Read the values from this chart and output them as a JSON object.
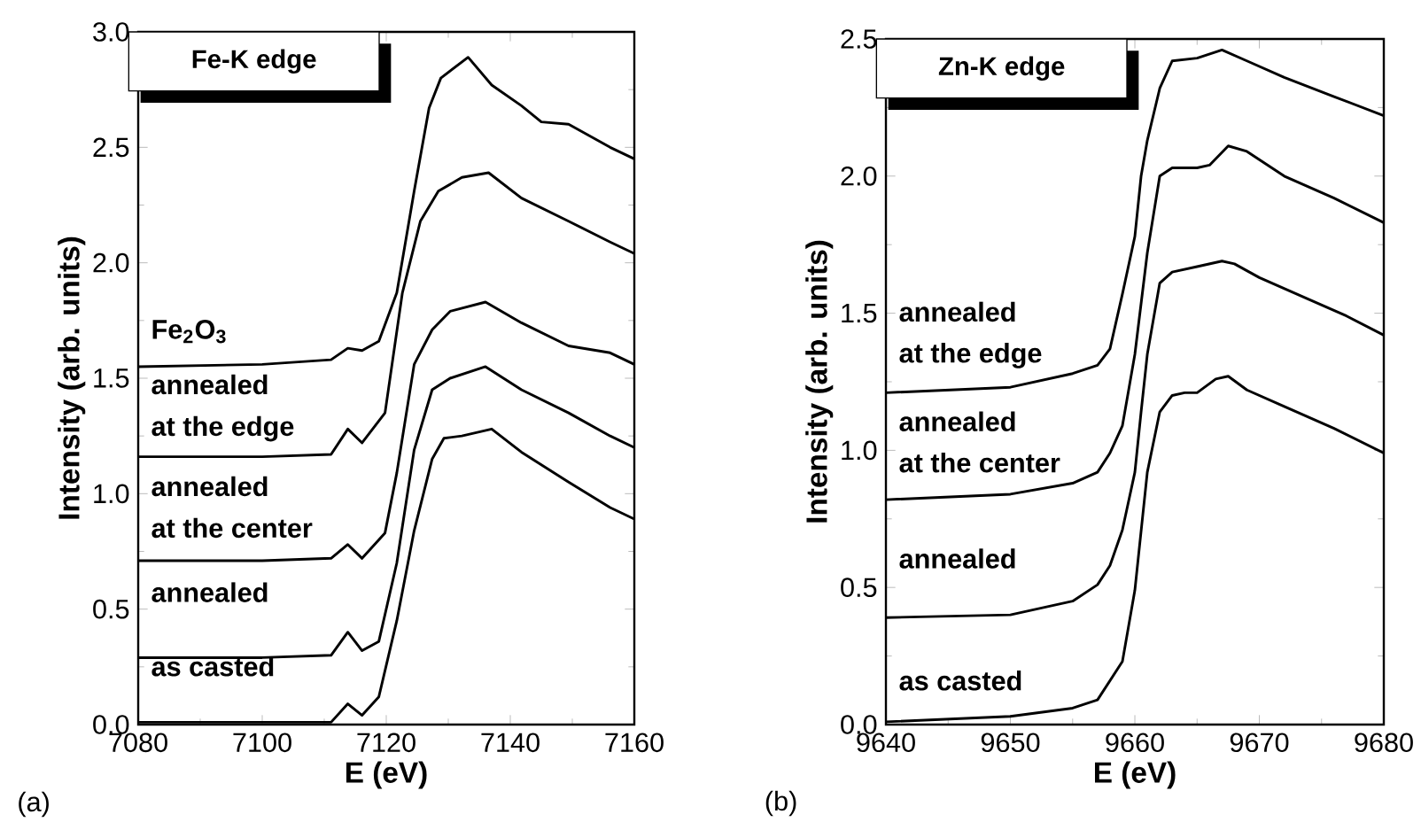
{
  "chart_data": [
    {
      "type": "line",
      "title": "Fe-K edge",
      "xlabel": "E (eV)",
      "ylabel": "Intensity (arb. units)",
      "xlim": [
        7080,
        7160
      ],
      "ylim": [
        0,
        3.0
      ],
      "xticks": [
        7080,
        7100,
        7120,
        7140,
        7160
      ],
      "marker": "none",
      "line_style": "solid",
      "yticks": [
        {
          "value": 0,
          "label": "0.0"
        },
        {
          "value": 0.5,
          "label": "0.5"
        },
        {
          "value": 1.0,
          "label": "1.0"
        },
        {
          "value": 1.5,
          "label": "1.5"
        },
        {
          "value": 2.0,
          "label": "2.0"
        },
        {
          "value": 2.5,
          "label": "2.5"
        },
        {
          "value": 3.0,
          "label": "3.0"
        }
      ],
      "series": [
        {
          "color": "#000000",
          "x": [
            7080,
            7100,
            7111.1,
            7113.8,
            7116.1,
            7118.8,
            7121.7,
            7124.5,
            7126.9,
            7128.8,
            7133.2,
            7137.0,
            7141.8,
            7145,
            7149.4,
            7156.1,
            7160
          ],
          "values": [
            1.55,
            1.56,
            1.58,
            1.63,
            1.62,
            1.66,
            1.87,
            2.31,
            2.67,
            2.8,
            2.89,
            2.77,
            2.68,
            2.61,
            2.6,
            2.5,
            2.45
          ]
        },
        {
          "color": "#000000",
          "x": [
            7080,
            7100,
            7111.1,
            7113.8,
            7116.1,
            7119.8,
            7122.6,
            7125.5,
            7128.4,
            7132.2,
            7136.5,
            7141.8,
            7149.4,
            7156.1,
            7160
          ],
          "values": [
            1.16,
            1.16,
            1.17,
            1.28,
            1.22,
            1.35,
            1.87,
            2.18,
            2.31,
            2.37,
            2.39,
            2.28,
            2.18,
            2.09,
            2.04
          ]
        },
        {
          "color": "#000000",
          "x": [
            7080,
            7100,
            7111.1,
            7113.8,
            7116.1,
            7119.8,
            7121.7,
            7124.5,
            7127.4,
            7130.3,
            7136.0,
            7141.8,
            7149.4,
            7156.1,
            7160
          ],
          "values": [
            0.71,
            0.71,
            0.72,
            0.78,
            0.72,
            0.83,
            1.09,
            1.56,
            1.71,
            1.79,
            1.83,
            1.74,
            1.64,
            1.61,
            1.56
          ]
        },
        {
          "color": "#000000",
          "x": [
            7080,
            7100,
            7111.1,
            7113.8,
            7116.1,
            7118.8,
            7121.7,
            7124.5,
            7127.4,
            7130.3,
            7136.0,
            7141.8,
            7149.4,
            7156.1,
            7160
          ],
          "values": [
            0.29,
            0.29,
            0.3,
            0.4,
            0.32,
            0.36,
            0.7,
            1.19,
            1.45,
            1.5,
            1.55,
            1.45,
            1.35,
            1.25,
            1.2
          ]
        },
        {
          "color": "#000000",
          "x": [
            7080,
            7100,
            7111.1,
            7113.8,
            7116.1,
            7118.8,
            7121.7,
            7124.5,
            7127.4,
            7129.3,
            7132.2,
            7137.0,
            7141.8,
            7149.4,
            7156.1,
            7160
          ],
          "values": [
            0.01,
            0.01,
            0.01,
            0.09,
            0.04,
            0.12,
            0.45,
            0.84,
            1.15,
            1.24,
            1.25,
            1.28,
            1.18,
            1.05,
            0.94,
            0.89
          ]
        }
      ],
      "annotations": [
        "Fe$_{2}$O$_{3}$",
        "annealed",
        "at the edge",
        "annealed",
        "at the center",
        "annealed",
        "as casted",
        "(a)"
      ]
    },
    {
      "type": "line",
      "title": "Zn-K edge",
      "xlabel": "E (eV)",
      "ylabel": "Intensity (arb. units)",
      "xlim": [
        9640,
        9680
      ],
      "ylim": [
        0,
        2.5
      ],
      "xticks": [
        9640,
        9650,
        9660,
        9670,
        9680
      ],
      "yticks": [
        {
          "value": 0,
          "label": "0.0"
        },
        {
          "value": 0.5,
          "label": "0.5"
        },
        {
          "value": 1.0,
          "label": "1.0"
        },
        {
          "value": 1.5,
          "label": "1.5"
        },
        {
          "value": 2.0,
          "label": "2.0"
        },
        {
          "value": 2.5,
          "label": "2.5"
        }
      ],
      "marker": "none",
      "line_style": "solid",
      "series": [
        {
          "color": "#000000",
          "x": [
            9640,
            9650,
            9655,
            9657,
            9658,
            9659,
            9660,
            9660.5,
            9661,
            9662,
            9663,
            9665,
            9667,
            9669,
            9672,
            9676,
            9680
          ],
          "values": [
            1.21,
            1.23,
            1.28,
            1.31,
            1.37,
            1.57,
            1.78,
            2.0,
            2.13,
            2.32,
            2.42,
            2.43,
            2.46,
            2.42,
            2.36,
            2.29,
            2.22
          ]
        },
        {
          "color": "#000000",
          "x": [
            9640,
            9650,
            9655,
            9657,
            9658,
            9659,
            9660,
            9661,
            9662,
            9663,
            9665,
            9666,
            9667.5,
            9669,
            9672,
            9676,
            9680
          ],
          "values": [
            0.82,
            0.84,
            0.88,
            0.92,
            0.99,
            1.09,
            1.35,
            1.72,
            2.0,
            2.03,
            2.03,
            2.04,
            2.11,
            2.09,
            2.0,
            1.92,
            1.83
          ]
        },
        {
          "color": "#000000",
          "x": [
            9640,
            9650,
            9655,
            9657,
            9658,
            9659,
            9660,
            9660.5,
            9661,
            9662,
            9663,
            9665,
            9667,
            9668,
            9670,
            9674,
            9677,
            9680
          ],
          "values": [
            0.39,
            0.4,
            0.45,
            0.51,
            0.58,
            0.71,
            0.92,
            1.14,
            1.35,
            1.61,
            1.65,
            1.67,
            1.69,
            1.68,
            1.63,
            1.55,
            1.49,
            1.42
          ]
        },
        {
          "color": "#000000",
          "x": [
            9640,
            9650,
            9655,
            9657,
            9659,
            9660,
            9661,
            9662,
            9663,
            9664,
            9665,
            9666.5,
            9667.5,
            9669,
            9672,
            9676,
            9680
          ],
          "values": [
            0.01,
            0.03,
            0.06,
            0.09,
            0.23,
            0.49,
            0.92,
            1.14,
            1.2,
            1.21,
            1.21,
            1.26,
            1.27,
            1.22,
            1.16,
            1.08,
            0.99
          ]
        }
      ],
      "annotations": [
        "annealed",
        "at the edge",
        "annealed",
        "at the center",
        "annealed",
        "as casted",
        "(b)"
      ]
    }
  ]
}
